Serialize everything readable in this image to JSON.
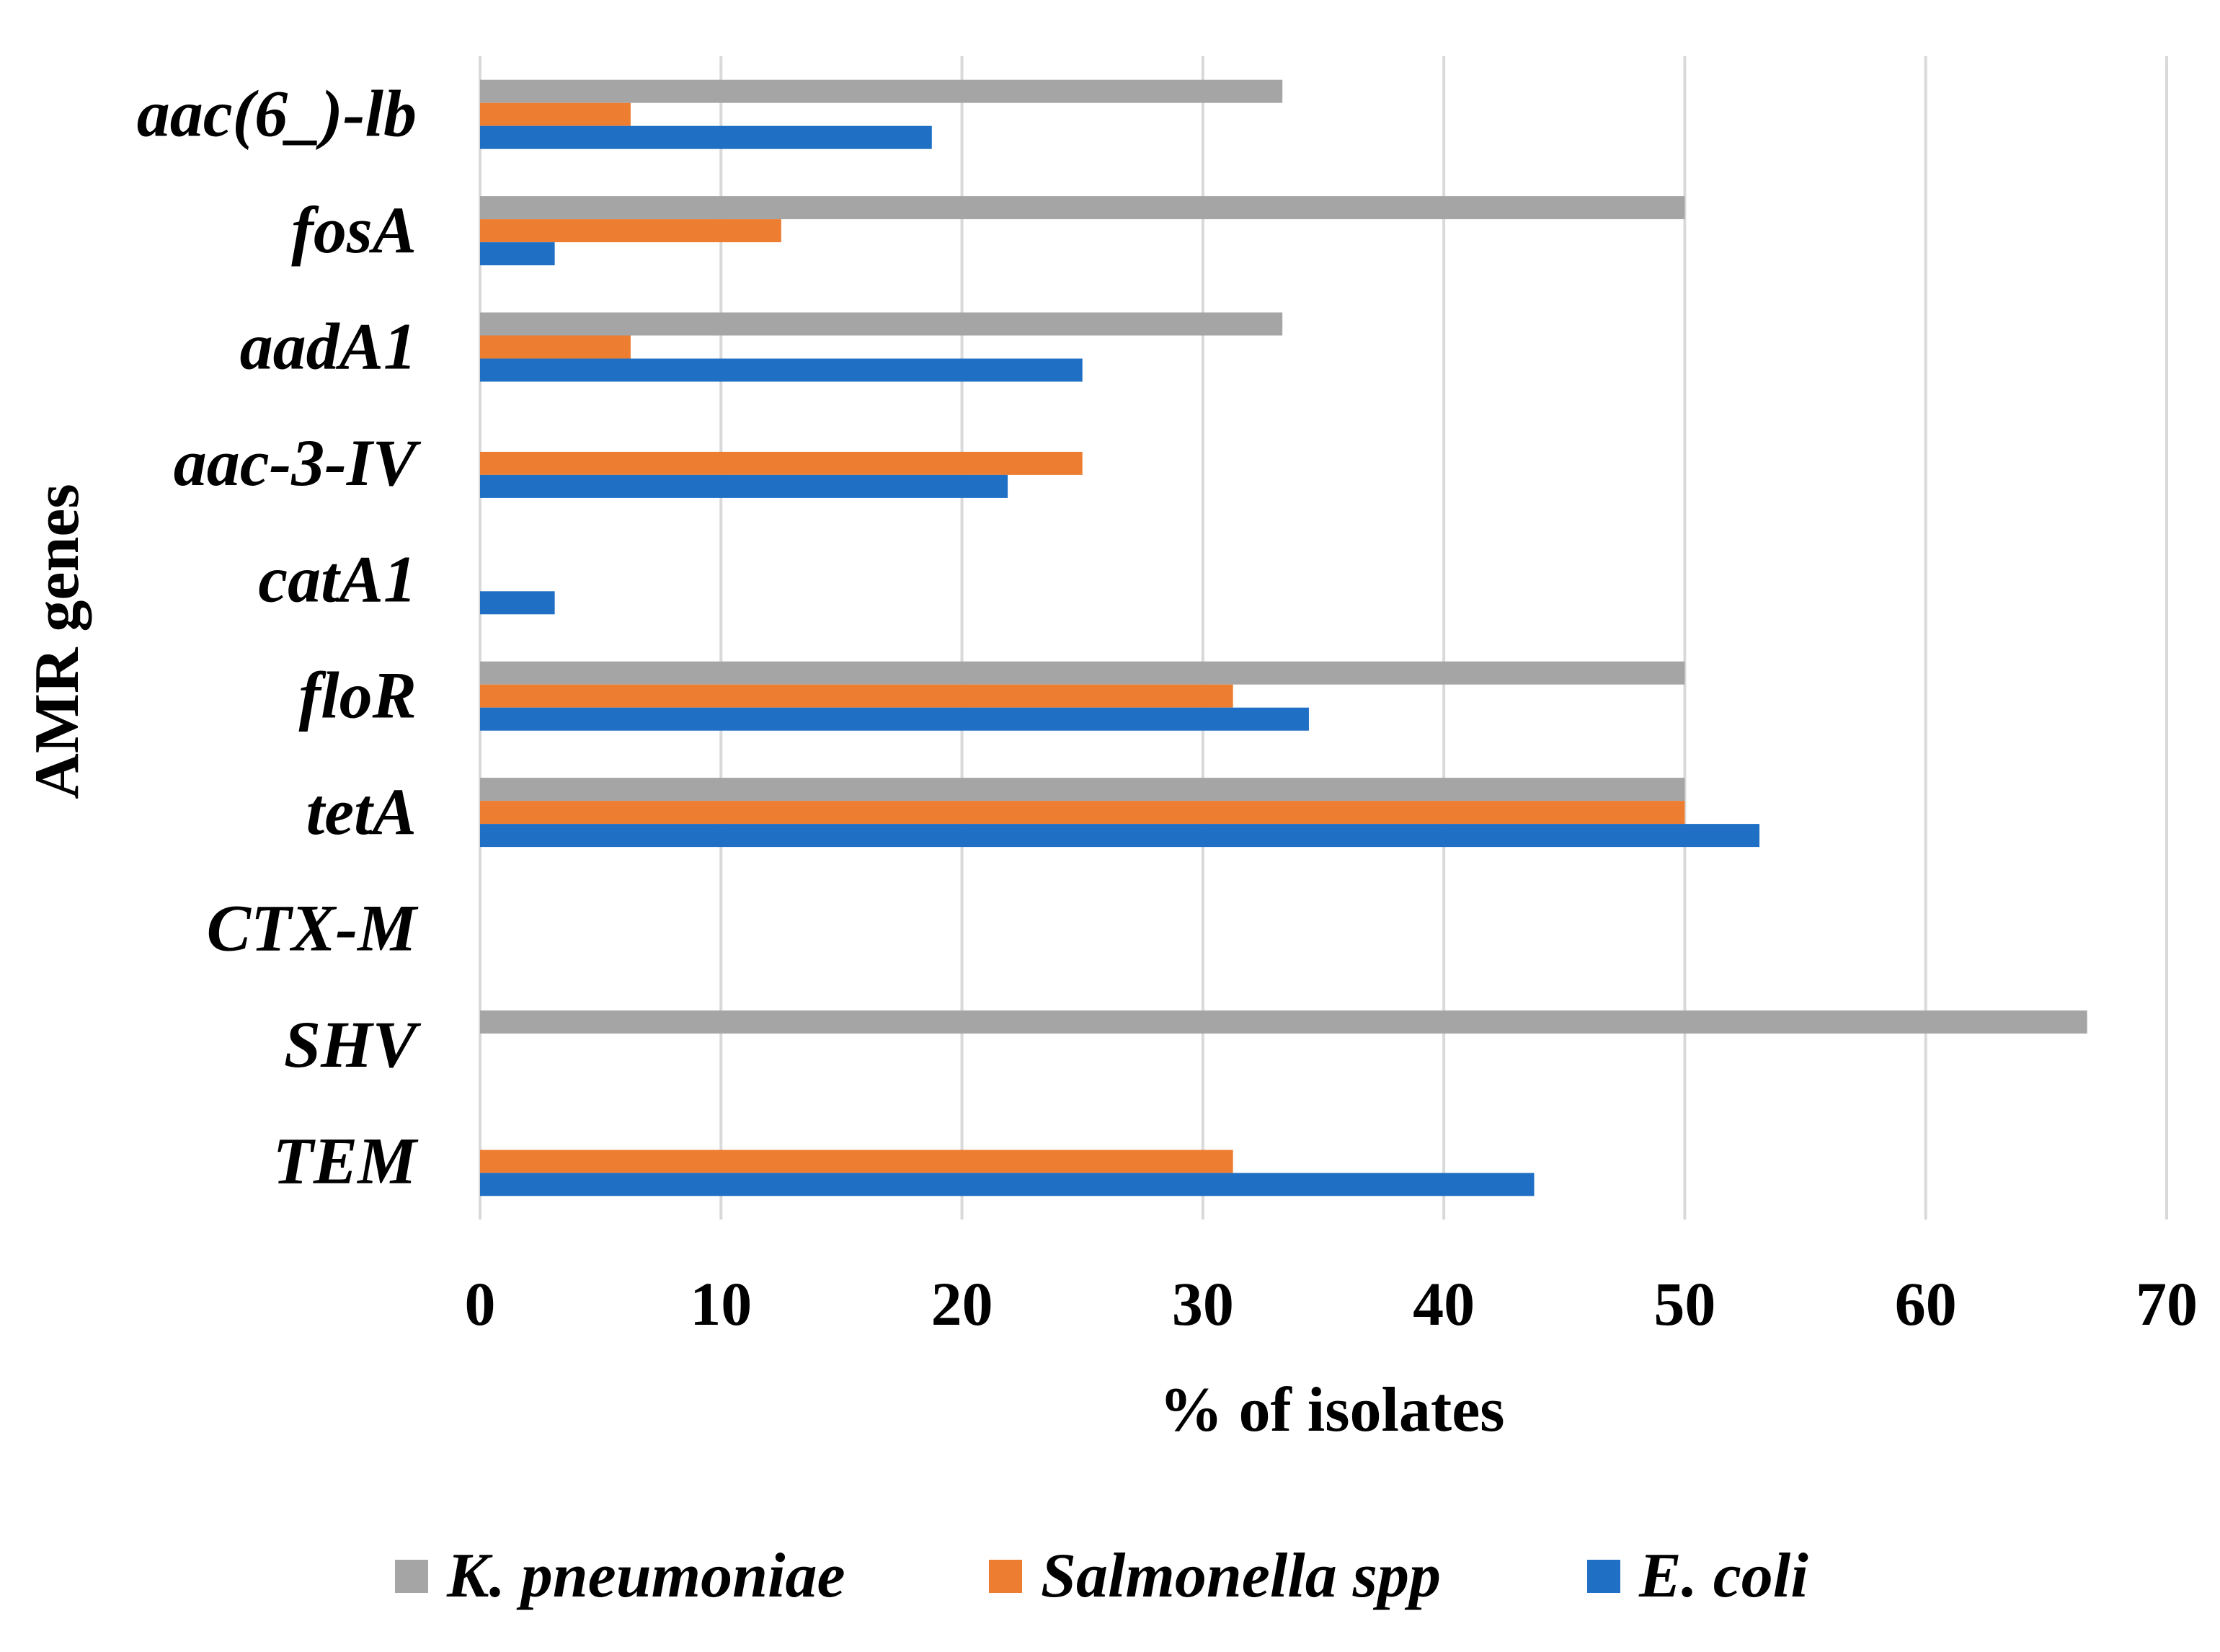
{
  "chart_data": {
    "type": "bar",
    "orientation": "horizontal",
    "title": "",
    "xlabel": "% of isolates",
    "ylabel": "AMR genes",
    "xlim": [
      0,
      70
    ],
    "x_ticks": [
      0,
      10,
      20,
      30,
      40,
      50,
      60,
      70
    ],
    "grid": "vertical",
    "legend_position": "bottom",
    "categories": [
      "aac(6_)-lb",
      "fosA",
      "aadA1",
      "aac-3-IV",
      "catA1",
      "floR",
      "tetA",
      "CTX-M",
      "SHV",
      "TEM"
    ],
    "series": [
      {
        "name": "K. pneumoniae",
        "color": "#A5A5A5",
        "values": [
          33.3,
          50,
          33.3,
          0,
          0,
          50,
          50,
          0,
          66.7,
          0
        ]
      },
      {
        "name": "Salmonella spp",
        "color": "#ED7D31",
        "values": [
          6.25,
          12.5,
          6.25,
          25,
          0,
          31.25,
          50,
          0,
          0,
          31.25
        ]
      },
      {
        "name": "E. coli",
        "color": "#1F6FC5",
        "values": [
          18.75,
          3.1,
          25,
          21.9,
          3.1,
          34.4,
          53.1,
          0,
          0,
          43.75
        ]
      }
    ]
  }
}
